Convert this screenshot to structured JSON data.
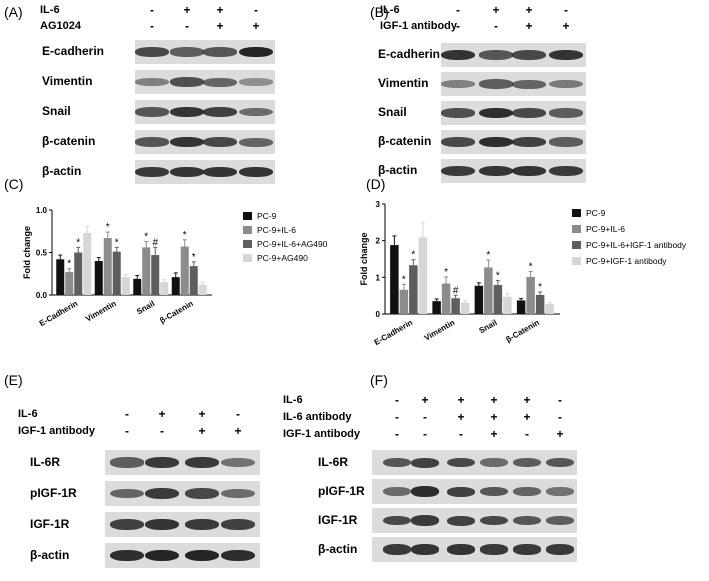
{
  "panelA": {
    "label": "(A)",
    "treatments": [
      {
        "name": "IL-6",
        "signs": [
          "-",
          "+",
          "+",
          "-"
        ]
      },
      {
        "name": "AG1024",
        "signs": [
          "-",
          "-",
          "+",
          "+"
        ]
      }
    ],
    "rows": [
      "E-cadherin",
      "Vimentin",
      "Snail",
      "β-catenin",
      "β-actin"
    ]
  },
  "panelB": {
    "label": "(B)",
    "treatments": [
      {
        "name": "IL-6",
        "signs": [
          "-",
          "+",
          "+",
          "-"
        ]
      },
      {
        "name": "IGF-1 antibody",
        "signs": [
          "-",
          "-",
          "+",
          "+"
        ]
      }
    ],
    "rows": [
      "E-cadherin",
      "Vimentin",
      "Snail",
      "β-catenin",
      "β-actin"
    ]
  },
  "panelC": {
    "label": "(C)"
  },
  "panelD": {
    "label": "(D)"
  },
  "panelE": {
    "label": "(E)",
    "treatments": [
      {
        "name": "IL-6",
        "signs": [
          "-",
          "+",
          "+",
          "-"
        ]
      },
      {
        "name": "IGF-1 antibody",
        "signs": [
          "-",
          "-",
          "+",
          "+"
        ]
      }
    ],
    "rows": [
      "IL-6R",
      "pIGF-1R",
      "IGF-1R",
      "β-actin"
    ]
  },
  "panelF": {
    "label": "(F)",
    "treatments": [
      {
        "name": "IL-6",
        "signs": [
          "-",
          "+",
          "+",
          "+",
          "+",
          "-"
        ]
      },
      {
        "name": "IL-6 antibody",
        "signs": [
          "-",
          "-",
          "+",
          "+",
          "+",
          "-"
        ]
      },
      {
        "name": "IGF-1 antibody",
        "signs": [
          "-",
          "-",
          "-",
          "+",
          "-",
          "+"
        ]
      }
    ],
    "rows": [
      "IL-6R",
      "pIGF-1R",
      "IGF-1R",
      "β-actin"
    ]
  },
  "colors": {
    "series": [
      "#111111",
      "#8c8c8c",
      "#5e5e5e",
      "#d6d6d6"
    ]
  },
  "chart_data": [
    {
      "type": "bar",
      "panel": "(C)",
      "ylabel": "Fold change",
      "ylim": [
        0,
        1.0
      ],
      "yticks": [
        "0.0",
        "0.5",
        "1.0"
      ],
      "categories": [
        "E-Cadherin",
        "Vimentin",
        "Snail",
        "β-Catenin"
      ],
      "series": [
        {
          "name": "PC-9",
          "values": [
            0.42,
            0.4,
            0.19,
            0.21
          ],
          "errors": [
            0.05,
            0.04,
            0.04,
            0.05
          ],
          "marks": [
            "",
            "",
            "",
            ""
          ]
        },
        {
          "name": "PC-9+IL-6",
          "values": [
            0.27,
            0.67,
            0.56,
            0.57
          ],
          "errors": [
            0.04,
            0.07,
            0.07,
            0.08
          ],
          "marks": [
            "*",
            "*",
            "*",
            "*"
          ]
        },
        {
          "name": "PC-9+IL-6+AG490",
          "values": [
            0.5,
            0.51,
            0.47,
            0.34
          ],
          "errors": [
            0.06,
            0.05,
            0.09,
            0.05
          ],
          "marks": [
            "*",
            "*",
            "#",
            "*"
          ]
        },
        {
          "name": "PC-9+AG490",
          "values": [
            0.73,
            0.21,
            0.15,
            0.12
          ],
          "errors": [
            0.08,
            0.03,
            0.03,
            0.03
          ],
          "marks": [
            "",
            "",
            "",
            ""
          ]
        }
      ],
      "legend": "right"
    },
    {
      "type": "bar",
      "panel": "(D)",
      "ylabel": "Fold change",
      "ylim": [
        0,
        3
      ],
      "yticks": [
        "0",
        "1",
        "2",
        "3"
      ],
      "categories": [
        "E-Cadherin",
        "Vimentin",
        "Snail",
        "β-Catenin"
      ],
      "series": [
        {
          "name": "PC-9",
          "values": [
            1.88,
            0.35,
            0.77,
            0.37
          ],
          "errors": [
            0.25,
            0.06,
            0.08,
            0.05
          ],
          "marks": [
            "",
            "",
            "",
            ""
          ]
        },
        {
          "name": "PC-9+IL-6",
          "values": [
            0.66,
            0.83,
            1.27,
            1.01
          ],
          "errors": [
            0.15,
            0.18,
            0.2,
            0.15
          ],
          "marks": [
            "*",
            "*",
            "*",
            "*"
          ]
        },
        {
          "name": "PC-9+IL-6+IGF-1 antibody",
          "values": [
            1.33,
            0.43,
            0.79,
            0.52
          ],
          "errors": [
            0.15,
            0.08,
            0.12,
            0.08
          ],
          "marks": [
            "*",
            "#",
            "*",
            "*"
          ]
        },
        {
          "name": "PC-9+IGF-1 antibody",
          "values": [
            2.09,
            0.31,
            0.47,
            0.27
          ],
          "errors": [
            0.4,
            0.05,
            0.08,
            0.04
          ],
          "marks": [
            "",
            "",
            "",
            ""
          ]
        }
      ],
      "legend": "right"
    }
  ]
}
